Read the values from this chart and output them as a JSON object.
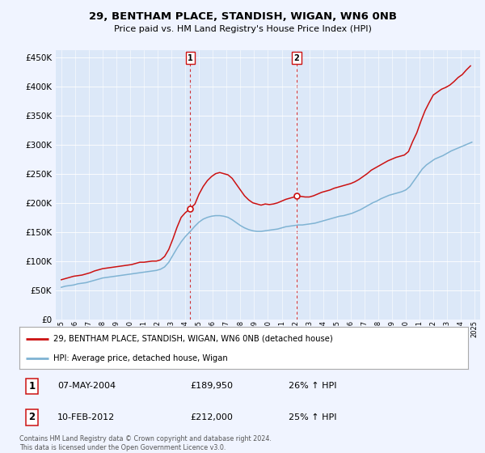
{
  "title": "29, BENTHAM PLACE, STANDISH, WIGAN, WN6 0NB",
  "subtitle": "Price paid vs. HM Land Registry's House Price Index (HPI)",
  "background_color": "#f0f4ff",
  "plot_bg_color": "#dce8f8",
  "ylim": [
    0,
    462500
  ],
  "yticks": [
    0,
    50000,
    100000,
    150000,
    200000,
    250000,
    300000,
    350000,
    400000,
    450000
  ],
  "xlim_start": 1994.6,
  "xlim_end": 2025.4,
  "legend_label_red": "29, BENTHAM PLACE, STANDISH, WIGAN, WN6 0NB (detached house)",
  "legend_label_blue": "HPI: Average price, detached house, Wigan",
  "marker1_year": 2004.36,
  "marker1_value": 189950,
  "marker1_label": "1",
  "marker1_date": "07-MAY-2004",
  "marker1_price": "£189,950",
  "marker1_hpi": "26% ↑ HPI",
  "marker2_year": 2012.08,
  "marker2_value": 212000,
  "marker2_label": "2",
  "marker2_date": "10-FEB-2012",
  "marker2_price": "£212,000",
  "marker2_hpi": "25% ↑ HPI",
  "footer": "Contains HM Land Registry data © Crown copyright and database right 2024.\nThis data is licensed under the Open Government Licence v3.0.",
  "red_line_x": [
    1995.0,
    1995.3,
    1995.6,
    1995.9,
    1996.2,
    1996.5,
    1996.8,
    1997.1,
    1997.4,
    1997.7,
    1998.0,
    1998.3,
    1998.6,
    1998.9,
    1999.2,
    1999.5,
    1999.8,
    2000.1,
    2000.4,
    2000.7,
    2001.0,
    2001.3,
    2001.6,
    2001.9,
    2002.2,
    2002.5,
    2002.8,
    2003.1,
    2003.4,
    2003.7,
    2004.0,
    2004.36,
    2004.7,
    2005.0,
    2005.3,
    2005.6,
    2005.9,
    2006.2,
    2006.5,
    2006.8,
    2007.1,
    2007.4,
    2007.7,
    2008.0,
    2008.3,
    2008.6,
    2008.9,
    2009.2,
    2009.5,
    2009.8,
    2010.1,
    2010.4,
    2010.7,
    2011.0,
    2011.3,
    2011.6,
    2011.9,
    2012.08,
    2012.4,
    2012.7,
    2013.0,
    2013.3,
    2013.6,
    2013.9,
    2014.2,
    2014.5,
    2014.8,
    2015.1,
    2015.4,
    2015.7,
    2016.0,
    2016.3,
    2016.6,
    2016.9,
    2017.2,
    2017.5,
    2017.8,
    2018.1,
    2018.4,
    2018.7,
    2019.0,
    2019.3,
    2019.6,
    2019.9,
    2020.2,
    2020.5,
    2020.8,
    2021.1,
    2021.4,
    2021.7,
    2022.0,
    2022.3,
    2022.6,
    2022.9,
    2023.2,
    2023.5,
    2023.8,
    2024.1,
    2024.4,
    2024.7
  ],
  "red_line_y": [
    68000,
    70000,
    72000,
    74000,
    75000,
    76000,
    78000,
    80000,
    83000,
    85000,
    87000,
    88000,
    89000,
    90000,
    91000,
    92000,
    93000,
    94000,
    96000,
    98000,
    98000,
    99000,
    100000,
    100000,
    102000,
    108000,
    120000,
    138000,
    158000,
    175000,
    183000,
    189950,
    198000,
    215000,
    228000,
    238000,
    245000,
    250000,
    252000,
    250000,
    248000,
    242000,
    232000,
    222000,
    212000,
    205000,
    200000,
    198000,
    196000,
    198000,
    197000,
    198000,
    200000,
    203000,
    206000,
    208000,
    210000,
    212000,
    211000,
    210000,
    210000,
    212000,
    215000,
    218000,
    220000,
    222000,
    225000,
    227000,
    229000,
    231000,
    233000,
    236000,
    240000,
    245000,
    250000,
    256000,
    260000,
    264000,
    268000,
    272000,
    275000,
    278000,
    280000,
    282000,
    288000,
    305000,
    320000,
    340000,
    358000,
    372000,
    385000,
    390000,
    395000,
    398000,
    402000,
    408000,
    415000,
    420000,
    428000,
    435000
  ],
  "blue_line_x": [
    1995.0,
    1995.3,
    1995.6,
    1995.9,
    1996.2,
    1996.5,
    1996.8,
    1997.1,
    1997.4,
    1997.7,
    1998.0,
    1998.3,
    1998.6,
    1998.9,
    1999.2,
    1999.5,
    1999.8,
    2000.1,
    2000.4,
    2000.7,
    2001.0,
    2001.3,
    2001.6,
    2001.9,
    2002.2,
    2002.5,
    2002.8,
    2003.1,
    2003.4,
    2003.7,
    2004.0,
    2004.4,
    2004.7,
    2005.0,
    2005.3,
    2005.6,
    2005.9,
    2006.2,
    2006.5,
    2006.8,
    2007.1,
    2007.4,
    2007.7,
    2008.0,
    2008.3,
    2008.6,
    2008.9,
    2009.2,
    2009.5,
    2009.8,
    2010.1,
    2010.4,
    2010.7,
    2011.0,
    2011.3,
    2011.6,
    2011.9,
    2012.2,
    2012.5,
    2012.8,
    2013.1,
    2013.4,
    2013.7,
    2014.0,
    2014.3,
    2014.6,
    2014.9,
    2015.2,
    2015.5,
    2015.8,
    2016.1,
    2016.4,
    2016.7,
    2017.0,
    2017.3,
    2017.6,
    2017.9,
    2018.2,
    2018.5,
    2018.8,
    2019.1,
    2019.4,
    2019.7,
    2020.0,
    2020.3,
    2020.6,
    2020.9,
    2021.2,
    2021.5,
    2021.8,
    2022.1,
    2022.4,
    2022.7,
    2023.0,
    2023.3,
    2023.6,
    2023.9,
    2024.2,
    2024.5,
    2024.8
  ],
  "blue_line_y": [
    55000,
    57000,
    58000,
    59000,
    61000,
    62000,
    63000,
    65000,
    67000,
    69000,
    71000,
    72000,
    73000,
    74000,
    75000,
    76000,
    77000,
    78000,
    79000,
    80000,
    81000,
    82000,
    83000,
    84000,
    86000,
    90000,
    98000,
    110000,
    122000,
    133000,
    142000,
    152000,
    160000,
    167000,
    172000,
    175000,
    177000,
    178000,
    178000,
    177000,
    175000,
    171000,
    166000,
    161000,
    157000,
    154000,
    152000,
    151000,
    151000,
    152000,
    153000,
    154000,
    155000,
    157000,
    159000,
    160000,
    161000,
    162000,
    162000,
    163000,
    164000,
    165000,
    167000,
    169000,
    171000,
    173000,
    175000,
    177000,
    178000,
    180000,
    182000,
    185000,
    188000,
    192000,
    196000,
    200000,
    203000,
    207000,
    210000,
    213000,
    215000,
    217000,
    219000,
    222000,
    228000,
    238000,
    248000,
    258000,
    265000,
    270000,
    275000,
    278000,
    281000,
    285000,
    289000,
    292000,
    295000,
    298000,
    301000,
    304000
  ]
}
